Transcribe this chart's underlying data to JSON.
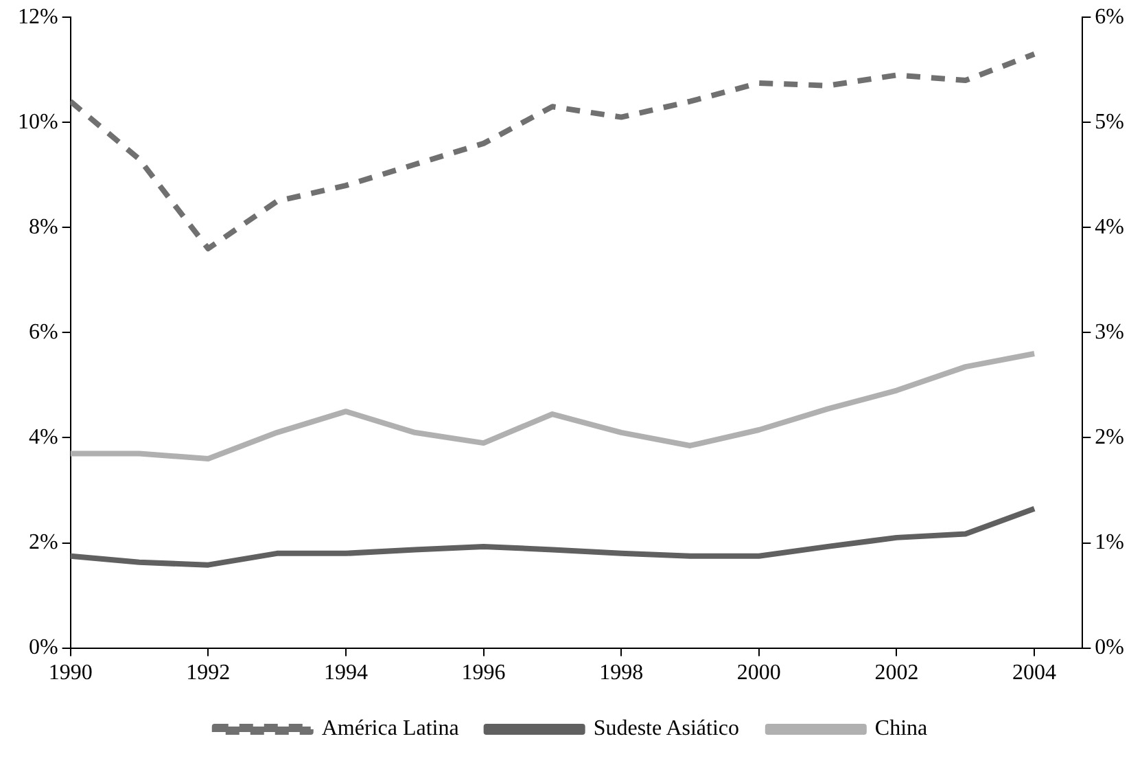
{
  "chart_data": {
    "type": "line",
    "x": [
      1990,
      1991,
      1992,
      1993,
      1994,
      1995,
      1996,
      1997,
      1998,
      1999,
      2000,
      2001,
      2002,
      2003,
      2004
    ],
    "series": [
      {
        "name": "América Latina",
        "color": "#707070",
        "line_style": "dashed",
        "values": [
          10.4,
          9.3,
          7.6,
          8.5,
          8.8,
          9.2,
          9.6,
          10.3,
          10.1,
          10.4,
          10.75,
          10.7,
          10.9,
          10.8,
          11.3
        ]
      },
      {
        "name": "Sudeste Asiático",
        "color": "#606060",
        "line_style": "solid",
        "values": [
          1.75,
          1.63,
          1.58,
          1.8,
          1.8,
          1.87,
          1.93,
          1.87,
          1.8,
          1.75,
          1.75,
          1.93,
          2.1,
          2.17,
          2.65
        ]
      },
      {
        "name": "China",
        "color": "#b0b0b0",
        "line_style": "solid",
        "values": [
          3.7,
          3.7,
          3.6,
          4.1,
          4.5,
          4.1,
          3.9,
          4.45,
          4.1,
          3.85,
          4.15,
          4.55,
          4.9,
          5.35,
          5.6
        ]
      }
    ],
    "xlim": [
      1990,
      2004.7
    ],
    "xticks": [
      1990,
      1992,
      1994,
      1996,
      1998,
      2000,
      2002,
      2004
    ],
    "ylim": [
      0,
      12
    ],
    "yticks": [
      {
        "value": 0,
        "label": "0%"
      },
      {
        "value": 2,
        "label": "2%"
      },
      {
        "value": 4,
        "label": "4%"
      },
      {
        "value": 6,
        "label": "6%"
      },
      {
        "value": 8,
        "label": "8%"
      },
      {
        "value": 10,
        "label": "10%"
      },
      {
        "value": 12,
        "label": "12%"
      }
    ],
    "y2lim": [
      0,
      6
    ],
    "y2ticks": [
      {
        "value": 0,
        "label": "0%"
      },
      {
        "value": 1,
        "label": "1%"
      },
      {
        "value": 2,
        "label": "2%"
      },
      {
        "value": 3,
        "label": "3%"
      },
      {
        "value": 4,
        "label": "4%"
      },
      {
        "value": 5,
        "label": "5%"
      },
      {
        "value": 6,
        "label": "6%"
      }
    ],
    "grid": false,
    "legend": "bottom",
    "marker": "none"
  }
}
